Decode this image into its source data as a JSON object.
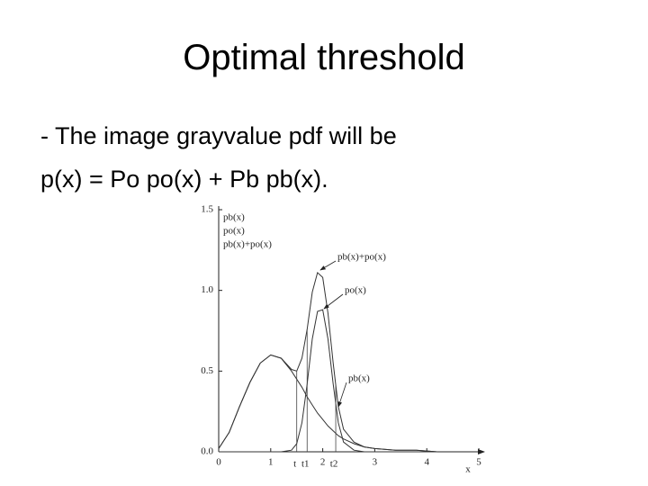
{
  "title": "Optimal threshold",
  "lines": [
    "- The image grayvalue pdf will be",
    "p(x) = Po po(x) + Pb pb(x)."
  ],
  "chart_data": {
    "type": "line",
    "x": [
      0,
      0.2,
      0.4,
      0.6,
      0.8,
      1.0,
      1.2,
      1.4,
      1.5,
      1.6,
      1.7,
      1.8,
      1.9,
      2.0,
      2.1,
      2.2,
      2.3,
      2.4,
      2.6,
      2.8,
      3.0,
      3.4,
      3.8,
      4.2
    ],
    "series": [
      {
        "name": "pb(x)",
        "color": "#333333",
        "values": [
          0.02,
          0.12,
          0.28,
          0.43,
          0.55,
          0.6,
          0.58,
          0.5,
          0.45,
          0.4,
          0.34,
          0.29,
          0.24,
          0.2,
          0.16,
          0.13,
          0.1,
          0.08,
          0.05,
          0.03,
          0.02,
          0.01,
          0.01,
          0
        ]
      },
      {
        "name": "po(x)",
        "color": "#333333",
        "values": [
          0,
          0,
          0,
          0,
          0,
          0,
          0,
          0.01,
          0.05,
          0.18,
          0.42,
          0.7,
          0.87,
          0.88,
          0.7,
          0.42,
          0.18,
          0.06,
          0.01,
          0,
          0,
          0,
          0,
          0
        ]
      },
      {
        "name": "pb(x)+po(x)",
        "color": "#333333",
        "values": [
          0.02,
          0.12,
          0.28,
          0.43,
          0.55,
          0.6,
          0.58,
          0.51,
          0.5,
          0.58,
          0.76,
          0.99,
          1.11,
          1.08,
          0.86,
          0.55,
          0.28,
          0.14,
          0.06,
          0.03,
          0.02,
          0.01,
          0.01,
          0
        ]
      }
    ],
    "xlim": [
      0,
      5
    ],
    "ylim": [
      0,
      1.5
    ],
    "xticks": [
      0,
      1,
      2,
      3,
      4,
      5
    ],
    "yticks": [
      {
        "value": 0,
        "label": "0.0"
      },
      {
        "value": 0.5,
        "label": "0.5"
      },
      {
        "value": 1,
        "label": "1.0"
      },
      {
        "value": 1.5,
        "label": "1.5"
      }
    ],
    "x_label": "x",
    "thresholds": [
      {
        "value": 1.5,
        "label": "t"
      },
      {
        "value": 1.7,
        "label": "t1"
      },
      {
        "value": 2.25,
        "label": "t2"
      }
    ]
  }
}
